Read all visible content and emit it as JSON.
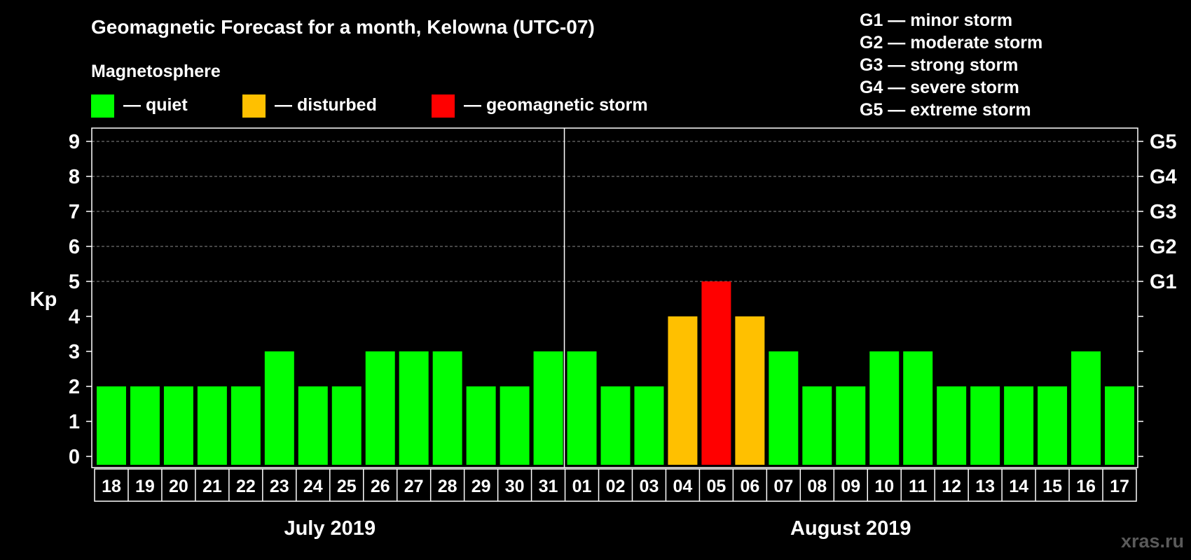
{
  "chart_data": {
    "type": "bar",
    "title": "Geomagnetic Forecast for a month, Kelowna (UTC-07)",
    "subtitle": "Magnetosphere",
    "ylabel": "Kp",
    "ylim": [
      0,
      9
    ],
    "yticks": [
      "0",
      "1",
      "2",
      "3",
      "4",
      "5",
      "6",
      "7",
      "8",
      "9"
    ],
    "right_ticks": [
      {
        "kp": 5,
        "label": "G1"
      },
      {
        "kp": 6,
        "label": "G2"
      },
      {
        "kp": 7,
        "label": "G3"
      },
      {
        "kp": 8,
        "label": "G4"
      },
      {
        "kp": 9,
        "label": "G5"
      }
    ],
    "legend": [
      {
        "label": "— quiet",
        "color": "#00ff00"
      },
      {
        "label": "— disturbed",
        "color": "#ffc000"
      },
      {
        "label": "— geomagnetic storm",
        "color": "#ff0000"
      }
    ],
    "storm_scale": [
      "G1 — minor storm",
      "G2 — moderate storm",
      "G3 — strong storm",
      "G4 — severe storm",
      "G5 — extreme storm"
    ],
    "categories": [
      "18",
      "19",
      "20",
      "21",
      "22",
      "23",
      "24",
      "25",
      "26",
      "27",
      "28",
      "29",
      "30",
      "31",
      "01",
      "02",
      "03",
      "04",
      "05",
      "06",
      "07",
      "08",
      "09",
      "10",
      "11",
      "12",
      "13",
      "14",
      "15",
      "16",
      "17"
    ],
    "values": [
      2,
      2,
      2,
      2,
      2,
      3,
      2,
      2,
      3,
      3,
      3,
      2,
      2,
      3,
      3,
      2,
      2,
      4,
      5,
      4,
      3,
      2,
      2,
      3,
      3,
      2,
      2,
      2,
      2,
      3,
      2
    ],
    "months": [
      {
        "label": "July 2019",
        "start": 0,
        "count": 14
      },
      {
        "label": "August 2019",
        "start": 14,
        "count": 17
      }
    ],
    "watermark": "xras.ru"
  }
}
